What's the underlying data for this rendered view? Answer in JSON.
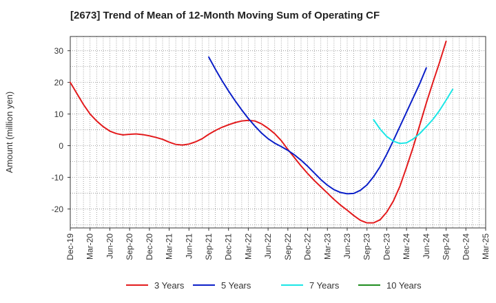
{
  "chart_data": {
    "type": "line",
    "title": "[2673]  Trend of Mean of 12-Month Moving Sum of Operating CF",
    "xlabel": "",
    "ylabel": "Amount (million yen)",
    "ylim": [
      -26,
      34.5
    ],
    "yticks": [
      -20,
      -10,
      0,
      10,
      20,
      30
    ],
    "x_ticks": [
      "Dec-19",
      "Mar-20",
      "Jun-20",
      "Sep-20",
      "Dec-20",
      "Mar-21",
      "Jun-21",
      "Sep-21",
      "Dec-21",
      "Mar-22",
      "Jun-22",
      "Sep-22",
      "Dec-22",
      "Mar-23",
      "Jun-23",
      "Sep-23",
      "Dec-23",
      "Mar-24",
      "Jun-24",
      "Sep-24",
      "Dec-24",
      "Mar-25"
    ],
    "x_index_range": [
      0,
      63
    ],
    "legend_position": "bottom",
    "series": [
      {
        "name": "3 Years",
        "color": "#e31a1c",
        "start_index": 0,
        "values": [
          20,
          16.5,
          13,
          10,
          7.8,
          6,
          4.6,
          3.8,
          3.4,
          3.6,
          3.7,
          3.5,
          3.1,
          2.6,
          2,
          1.1,
          0.4,
          0.2,
          0.5,
          1.2,
          2.2,
          3.6,
          4.8,
          5.8,
          6.6,
          7.3,
          7.8,
          8,
          7.8,
          6.9,
          5.5,
          3.8,
          1.6,
          -1.2,
          -3.8,
          -6.4,
          -8.8,
          -11,
          -13,
          -15,
          -17,
          -18.8,
          -20.4,
          -22.1,
          -23.6,
          -24.4,
          -24.4,
          -23.4,
          -21,
          -17.5,
          -12.8,
          -6.8,
          -0.5,
          6.5,
          13.5,
          20,
          26.3,
          33
        ]
      },
      {
        "name": "5 Years",
        "color": "#0a1ec8",
        "start_index": 21,
        "values": [
          28,
          24.2,
          20.6,
          17.3,
          14.2,
          11.3,
          8.6,
          6.2,
          4,
          2.2,
          0.8,
          -0.3,
          -1.5,
          -2.9,
          -4.6,
          -6.5,
          -8.6,
          -10.7,
          -12.5,
          -13.9,
          -14.8,
          -15.2,
          -15.1,
          -14.1,
          -12.4,
          -9.8,
          -6.6,
          -2.7,
          1.6,
          6.1,
          10.6,
          15.1,
          19.6,
          24.6
        ]
      },
      {
        "name": "7 Years",
        "color": "#19e6e6",
        "start_index": 46,
        "values": [
          8.2,
          5.2,
          2.9,
          1.4,
          0.7,
          0.9,
          2.1,
          3.8,
          6,
          8.3,
          11.1,
          14.4,
          17.8
        ]
      },
      {
        "name": "10 Years",
        "color": "#1e8c1e",
        "start_index": 0,
        "values": []
      }
    ]
  }
}
